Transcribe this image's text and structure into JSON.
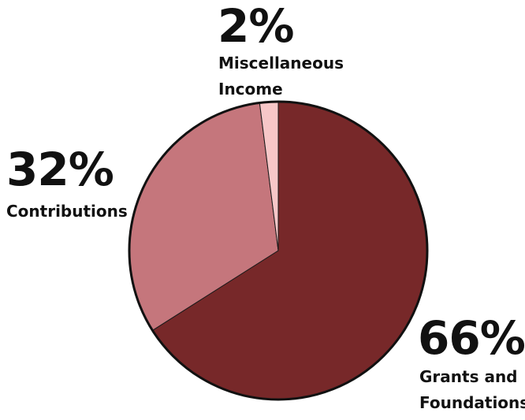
{
  "chart_data": {
    "type": "pie",
    "slices": [
      {
        "label": "Grants and Foundations",
        "value": 66,
        "display": "66%",
        "color": "#772829"
      },
      {
        "label": "Contributions",
        "value": 32,
        "display": "32%",
        "color": "#c5767c"
      },
      {
        "label": "Miscellaneous Income",
        "value": 2,
        "display": "2%",
        "color": "#f7c7c8"
      }
    ]
  }
}
